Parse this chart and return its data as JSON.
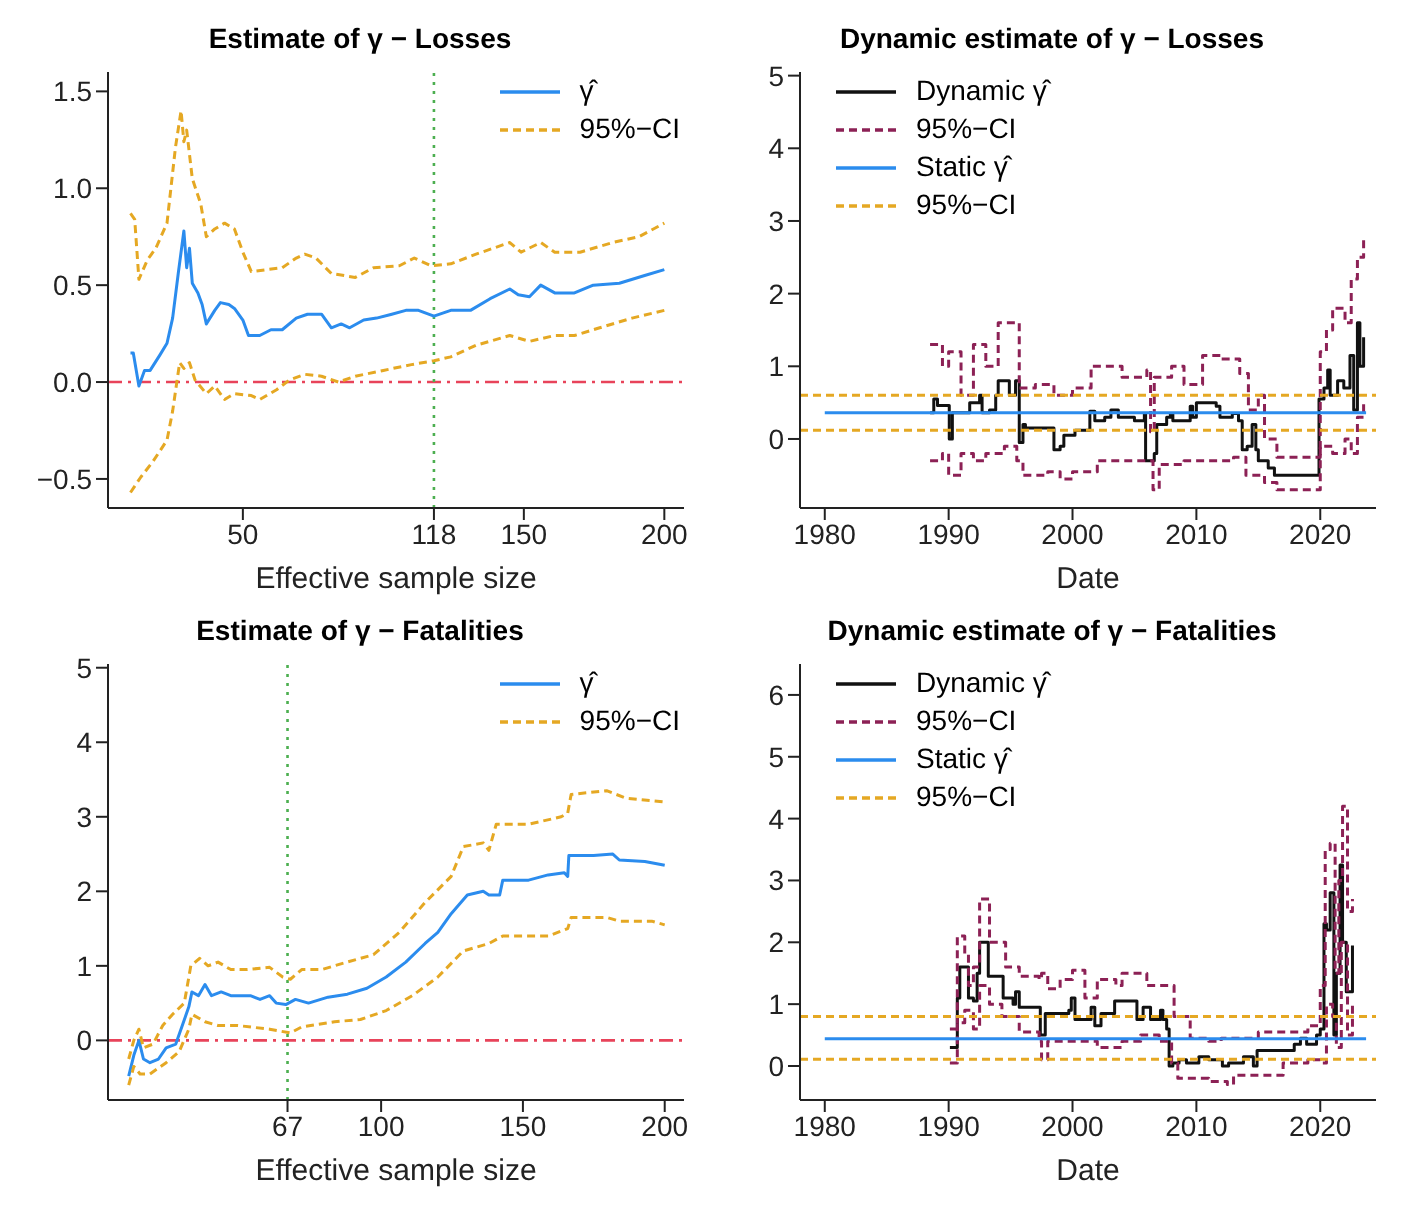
{
  "chart_data": [
    {
      "type": "line",
      "title": "Estimate of γ − Losses",
      "xlabel": "Effective sample size",
      "xlim": [
        2,
        207
      ],
      "xticks": [
        50,
        118,
        150,
        200
      ],
      "ylim": [
        -0.65,
        1.6
      ],
      "yticks": [
        {
          "value": -0.5,
          "label": "−0.5"
        },
        {
          "value": 0,
          "label": "0.0"
        },
        {
          "value": 0.5,
          "label": "0.5"
        },
        {
          "value": 1,
          "label": "1.0"
        },
        {
          "value": 1.5,
          "label": "1.5"
        }
      ],
      "legend": "top right",
      "ref_lines": [
        {
          "axis": "y",
          "value": 0,
          "color": "#e8435a",
          "line_style": "dashdot"
        },
        {
          "axis": "x",
          "value": 118,
          "color": "#4caf50",
          "line_style": "dotted"
        }
      ],
      "series": [
        {
          "name": "γ̂",
          "color": "#2b8cee",
          "line_style": "solid",
          "x": [
            10,
            11,
            13,
            15,
            17,
            20.5,
            23,
            25,
            27,
            29,
            30,
            31,
            32,
            34,
            35.5,
            37,
            40,
            42,
            45,
            47,
            50,
            52,
            56,
            60,
            64,
            69,
            73,
            78,
            81.5,
            85,
            88,
            93,
            97.6,
            103,
            108,
            112.5,
            118,
            124,
            131,
            138,
            145,
            148,
            152,
            156,
            161,
            168,
            174.7,
            184,
            193,
            200
          ],
          "values": [
            0.15,
            0.15,
            -0.02,
            0.06,
            0.06,
            0.14,
            0.2,
            0.33,
            0.56,
            0.78,
            0.59,
            0.69,
            0.51,
            0.46,
            0.4,
            0.3,
            0.37,
            0.41,
            0.4,
            0.38,
            0.32,
            0.24,
            0.24,
            0.27,
            0.27,
            0.33,
            0.35,
            0.35,
            0.28,
            0.3,
            0.28,
            0.32,
            0.33,
            0.35,
            0.37,
            0.37,
            0.34,
            0.37,
            0.37,
            0.43,
            0.48,
            0.45,
            0.44,
            0.5,
            0.46,
            0.46,
            0.5,
            0.51,
            0.55,
            0.58
          ]
        },
        {
          "name": "95%−CI",
          "color": "#e5a823",
          "line_style": "dashed",
          "x": [
            10,
            11.5,
            13,
            16,
            19,
            23,
            26,
            28,
            29,
            30,
            32,
            35,
            37,
            40,
            43.5,
            47,
            50,
            53,
            58.5,
            64,
            69,
            72,
            76,
            81.5,
            90,
            96.5,
            105.7,
            111,
            117,
            124,
            133,
            145,
            149,
            156,
            161,
            170,
            181.6,
            191,
            200
          ],
          "values": [
            0.87,
            0.84,
            0.53,
            0.63,
            0.69,
            0.82,
            1.21,
            1.4,
            1.24,
            1.3,
            1.05,
            0.92,
            0.75,
            0.79,
            0.82,
            0.79,
            0.67,
            0.57,
            0.58,
            0.59,
            0.64,
            0.66,
            0.64,
            0.56,
            0.54,
            0.59,
            0.6,
            0.64,
            0.6,
            0.61,
            0.66,
            0.72,
            0.67,
            0.72,
            0.67,
            0.67,
            0.72,
            0.75,
            0.82
          ]
        },
        {
          "color": "#e5a823",
          "line_style": "dashed",
          "x": [
            10,
            13.7,
            18,
            23,
            25,
            27.5,
            29,
            31,
            33,
            37,
            40,
            43.5,
            47,
            53,
            56,
            62,
            66.5,
            72,
            78,
            84,
            90,
            100,
            110,
            118,
            124,
            133,
            145,
            152,
            161,
            168,
            177,
            188.5,
            200
          ],
          "values": [
            -0.57,
            -0.49,
            -0.41,
            -0.3,
            -0.15,
            0.1,
            0.07,
            0.1,
            0.01,
            -0.06,
            -0.02,
            -0.09,
            -0.06,
            -0.07,
            -0.09,
            -0.04,
            0.01,
            0.04,
            0.03,
            0,
            0.03,
            0.06,
            0.09,
            0.11,
            0.13,
            0.19,
            0.24,
            0.21,
            0.24,
            0.24,
            0.28,
            0.33,
            0.37
          ]
        }
      ]
    },
    {
      "type": "step",
      "title": "Dynamic estimate of γ − Losses",
      "xlabel": "Date",
      "xlim": [
        1978,
        2024.5
      ],
      "xticks": [
        1980,
        1990,
        2000,
        2010,
        2020
      ],
      "ylim": [
        -0.95,
        5.05
      ],
      "yticks": [
        0,
        1,
        2,
        3,
        4,
        5
      ],
      "legend": "top left",
      "series": [
        {
          "name": "Dynamic γ̂",
          "color": "#111111",
          "line_style": "solid",
          "x": [
            1988.5,
            1988.8,
            1989.1,
            1989.9,
            1990.05,
            1990.3,
            1991.2,
            1991.7,
            1992.5,
            1992.7,
            1993.3,
            1993.8,
            1994,
            1994.9,
            1995.2,
            1995.4,
            1995.7,
            1996,
            1996.2,
            1998.4,
            1998.5,
            1999,
            1999.3,
            2000.2,
            2001.3,
            2001.4,
            2001.8,
            2002.6,
            2003.1,
            2003.7,
            2004.4,
            2005,
            2005.8,
            2005.9,
            2006.6,
            2006.8,
            2007.6,
            2007.9,
            2008.1,
            2009.2,
            2009.5,
            2009.7,
            2010,
            2010.8,
            2011.6,
            2011.9,
            2012.9,
            2013.4,
            2013.7,
            2014.1,
            2014.5,
            2014.8,
            2015,
            2015.8,
            2016.3,
            2019.3,
            2019.7,
            2019.9,
            2020.3,
            2020.6,
            2020.8,
            2021.4,
            2021.9,
            2022.4,
            2022.7,
            2023,
            2023.2,
            2023.5
          ],
          "values": [
            0.36,
            0.55,
            0.46,
            0.46,
            0,
            0.36,
            0.36,
            0.5,
            0.6,
            0.36,
            0.4,
            0.6,
            0.8,
            0.6,
            0.6,
            0.8,
            -0.05,
            0.2,
            0.15,
            0.15,
            -0.15,
            -0.1,
            0.05,
            0.12,
            0.12,
            0.38,
            0.25,
            0.3,
            0.4,
            0.3,
            0.3,
            0.25,
            0.35,
            -0.3,
            -0.2,
            0.2,
            0.3,
            0.35,
            0.25,
            0.25,
            0.45,
            0.3,
            0.5,
            0.5,
            0.45,
            0.3,
            0.35,
            0.25,
            -0.15,
            -0.1,
            0.2,
            -0.15,
            -0.3,
            -0.4,
            -0.5,
            -0.5,
            -0.5,
            0.55,
            0.7,
            0.95,
            0.6,
            0.8,
            0.7,
            1.15,
            0.4,
            1.6,
            1,
            1.4
          ]
        },
        {
          "name": "95%−CI",
          "color": "#8c2155",
          "line_style": "dashed",
          "x": [
            1988.5,
            1989.5,
            1990,
            1991,
            1992,
            1993,
            1994,
            1995.4,
            1995.7,
            1997,
            1998.5,
            2000,
            2001.5,
            2003,
            2004,
            2006,
            2006.3,
            2006.6,
            2008,
            2009,
            2010.5,
            2012,
            2013.5,
            2014.2,
            2015,
            2015.5,
            2016.5,
            2019.5,
            2020,
            2020.5,
            2021,
            2022,
            2022.5,
            2023,
            2023.5
          ],
          "values": [
            1.3,
            1,
            1.2,
            0.6,
            1.3,
            1,
            1.6,
            1.6,
            0.7,
            0.75,
            0.6,
            0.7,
            1,
            1,
            0.85,
            0.95,
            0.1,
            0.85,
            1,
            0.75,
            1.15,
            1.1,
            0.9,
            0.4,
            0.6,
            0,
            -0.25,
            -0.25,
            1.2,
            1.5,
            1.8,
            1.6,
            2.2,
            2.5,
            2.8
          ]
        },
        {
          "color": "#8c2155",
          "line_style": "dashed",
          "x": [
            1988.5,
            1989.5,
            1990,
            1991,
            1992,
            1993,
            1994.5,
            1995.5,
            1996,
            1998,
            1999,
            2000,
            2002,
            2004,
            2005.5,
            2006.5,
            2007,
            2009,
            2011,
            2013,
            2014,
            2015.5,
            2016.5,
            2019.5,
            2020,
            2021,
            2022,
            2022.5,
            2023,
            2023.5
          ],
          "values": [
            -0.3,
            -0.2,
            -0.5,
            -0.2,
            -0.3,
            -0.2,
            -0.1,
            -0.3,
            -0.5,
            -0.45,
            -0.55,
            -0.45,
            -0.3,
            -0.3,
            -0.3,
            -0.7,
            -0.35,
            -0.3,
            -0.3,
            -0.25,
            -0.5,
            -0.6,
            -0.7,
            -0.7,
            -0.1,
            -0.2,
            0,
            -0.2,
            0.3,
            0.5
          ]
        },
        {
          "name": "Static γ̂",
          "type": "line",
          "color": "#2b8cee",
          "line_style": "solid",
          "x": [
            1980,
            2023.7
          ],
          "values": [
            0.36,
            0.36
          ]
        },
        {
          "name": "95%−CI",
          "type": "line",
          "color": "#e5a823",
          "line_style": "dashed",
          "x": [
            1978,
            2024.5
          ],
          "values": [
            0.6,
            0.6
          ]
        },
        {
          "type": "line",
          "color": "#e5a823",
          "line_style": "dashed",
          "x": [
            1978,
            2024.5
          ],
          "values": [
            0.12,
            0.12
          ]
        }
      ]
    },
    {
      "type": "line",
      "title": "Estimate of γ − Fatalities",
      "xlabel": "Effective sample size",
      "xlim": [
        3.7,
        206.8
      ],
      "xticks": [
        67,
        100,
        150,
        200
      ],
      "ylim": [
        -0.8,
        5.05
      ],
      "yticks": [
        0,
        1,
        2,
        3,
        4,
        5
      ],
      "legend": "top right",
      "ref_lines": [
        {
          "axis": "y",
          "value": 0,
          "color": "#e8435a",
          "line_style": "dashdot"
        },
        {
          "axis": "x",
          "value": 67,
          "color": "#4caf50",
          "line_style": "dotted"
        }
      ],
      "series": [
        {
          "name": "γ̂",
          "color": "#2b8cee",
          "line_style": "solid",
          "x": [
            11,
            12.8,
            14.6,
            16.2,
            18.5,
            21.5,
            24.2,
            27.6,
            29.9,
            32.2,
            33.3,
            35.6,
            37.9,
            40.2,
            43.6,
            47,
            53.9,
            57.3,
            60.7,
            63,
            66.4,
            69.8,
            74.4,
            81.3,
            88.1,
            95,
            101.8,
            108.7,
            115.5,
            120,
            124.7,
            130.4,
            136,
            138,
            141.8,
            142.9,
            152,
            158.9,
            164.6,
            165.8,
            166.2,
            174.9,
            181.7,
            184,
            193,
            200
          ],
          "values": [
            -0.48,
            -0.2,
            0,
            -0.25,
            -0.3,
            -0.25,
            -0.1,
            -0.05,
            0.2,
            0.45,
            0.65,
            0.6,
            0.75,
            0.6,
            0.65,
            0.6,
            0.6,
            0.55,
            0.6,
            0.5,
            0.48,
            0.55,
            0.5,
            0.58,
            0.62,
            0.7,
            0.85,
            1.05,
            1.3,
            1.45,
            1.7,
            1.95,
            2,
            1.95,
            1.95,
            2.15,
            2.15,
            2.22,
            2.25,
            2.2,
            2.48,
            2.48,
            2.5,
            2.42,
            2.4,
            2.35
          ]
        },
        {
          "name": "95%−CI",
          "color": "#e5a823",
          "line_style": "dashed",
          "x": [
            11,
            12.8,
            14.6,
            16.2,
            19.6,
            23,
            26.5,
            30.6,
            32.9,
            36,
            39,
            42.5,
            47,
            52.7,
            60.7,
            65.3,
            68,
            72,
            79,
            88,
            97.3,
            106.4,
            115.5,
            124.7,
            129,
            136,
            138,
            140.6,
            152,
            163.5,
            165.8,
            167,
            179.5,
            186.3,
            200
          ],
          "values": [
            -0.25,
            0,
            0.15,
            -0.1,
            -0.05,
            0.2,
            0.35,
            0.5,
            1,
            1.1,
            1,
            1.05,
            0.95,
            0.95,
            0.98,
            0.85,
            0.82,
            0.95,
            0.95,
            1.05,
            1.15,
            1.45,
            1.85,
            2.2,
            2.6,
            2.65,
            2.55,
            2.9,
            2.9,
            3,
            3.05,
            3.3,
            3.35,
            3.25,
            3.2
          ]
        },
        {
          "color": "#e5a823",
          "line_style": "dashed",
          "x": [
            11,
            12.8,
            15,
            18.5,
            24.2,
            28.8,
            32.2,
            33.3,
            37.9,
            42.5,
            49.3,
            60.7,
            68,
            72,
            83.6,
            92.7,
            101.8,
            111,
            120,
            129,
            138,
            142.9,
            159,
            165.8,
            167,
            179.5,
            184,
            195.4,
            200
          ],
          "values": [
            -0.6,
            -0.35,
            -0.45,
            -0.45,
            -0.3,
            -0.15,
            0.15,
            0.35,
            0.25,
            0.2,
            0.2,
            0.15,
            0.1,
            0.18,
            0.25,
            0.28,
            0.4,
            0.6,
            0.85,
            1.2,
            1.3,
            1.4,
            1.4,
            1.5,
            1.65,
            1.65,
            1.6,
            1.6,
            1.55
          ]
        }
      ]
    },
    {
      "type": "step",
      "title": "Dynamic estimate of γ − Fatalities",
      "xlabel": "Date",
      "xlim": [
        1978,
        2024.5
      ],
      "xticks": [
        1980,
        1990,
        2000,
        2010,
        2020
      ],
      "ylim": [
        -0.55,
        6.5
      ],
      "yticks": [
        0,
        1,
        2,
        3,
        4,
        5,
        6
      ],
      "legend": "top left",
      "series": [
        {
          "name": "Dynamic γ̂",
          "color": "#111111",
          "line_style": "solid",
          "x": [
            1990.1,
            1990.6,
            1990.7,
            1990.9,
            1991.5,
            1991.6,
            1992,
            1992.3,
            1992.5,
            1993.1,
            1993.2,
            1994.1,
            1994.4,
            1995.2,
            1995.4,
            1995.7,
            1997.3,
            1997.4,
            1997.8,
            1999.1,
            1999.7,
            1999.9,
            2000.2,
            2001.2,
            2001.5,
            2001.8,
            2002.3,
            2003.1,
            2003.4,
            2004.9,
            2005.2,
            2005.7,
            2006.3,
            2007.1,
            2007.3,
            2007.6,
            2007.8,
            2008.1,
            2008.6,
            2009.2,
            2010.2,
            2011,
            2011.8,
            2012.1,
            2012.6,
            2013.7,
            2013.8,
            2014.6,
            2014.9,
            2017.1,
            2017.9,
            2018.4,
            2018.9,
            2019.7,
            2020,
            2020.3,
            2020.5,
            2020.8,
            2021.1,
            2021.3,
            2021.6,
            2021.8,
            2022.1,
            2022.5,
            2022.6
          ],
          "values": [
            0.3,
            0.3,
            1.1,
            1.6,
            1.6,
            1.1,
            1.05,
            1.5,
            2,
            2,
            1.45,
            1.45,
            1.1,
            1,
            1.2,
            0.95,
            0.95,
            0.5,
            0.85,
            0.85,
            0.9,
            1.1,
            0.75,
            0.75,
            0.95,
            0.65,
            0.85,
            0.85,
            1.05,
            1.05,
            0.75,
            0.95,
            0.75,
            0.9,
            0.75,
            0.6,
            0,
            0.05,
            0.1,
            0.05,
            0.15,
            0.1,
            0.1,
            0,
            0.05,
            0.05,
            0.15,
            0,
            0.25,
            0.25,
            0.35,
            0.45,
            0.35,
            0.5,
            0.6,
            2.3,
            2.2,
            2.8,
            0.5,
            1.5,
            3.25,
            2,
            1.2,
            1.2,
            1.95
          ]
        },
        {
          "name": "95%−CI",
          "color": "#8c2155",
          "line_style": "dashed",
          "x": [
            1990.1,
            1990.7,
            1991.3,
            1991.6,
            1992,
            1992.5,
            1993.3,
            1994.3,
            1994.6,
            1995.7,
            1997.3,
            1997.5,
            1998,
            1999,
            2000,
            2001,
            2002,
            2003.5,
            2004,
            2005.5,
            2006,
            2007.5,
            2008.2,
            2009.5,
            2011,
            2012,
            2013.5,
            2015,
            2017,
            2019,
            2020,
            2020.4,
            2020.8,
            2021.2,
            2021.5,
            2021.8,
            2022.2,
            2022.6
          ],
          "values": [
            0.6,
            2.1,
            1.8,
            1.3,
            1.6,
            2.7,
            2,
            2,
            1.6,
            1.45,
            1.4,
            1.5,
            1.25,
            1.4,
            1.55,
            1.1,
            1.4,
            1.3,
            1.5,
            1.5,
            1.3,
            1.3,
            0.8,
            0.45,
            0.4,
            0.45,
            0.45,
            0.55,
            0.55,
            0.65,
            1.3,
            3.5,
            3.6,
            1.5,
            3,
            4.2,
            2.5,
            2.7
          ]
        },
        {
          "color": "#8c2155",
          "line_style": "dashed",
          "x": [
            1990.1,
            1990.7,
            1991.3,
            1992,
            1992.5,
            1993.3,
            1994.3,
            1995.7,
            1997.3,
            1997.5,
            1998,
            2000,
            2001,
            2002,
            2004,
            2005.5,
            2007,
            2008,
            2008.5,
            2010,
            2011,
            2012.5,
            2013,
            2015,
            2017,
            2019,
            2020,
            2020.5,
            2021,
            2021.3,
            2021.7,
            2022.2,
            2022.6
          ],
          "values": [
            0.05,
            0.7,
            0.9,
            0.6,
            1.3,
            1,
            0.8,
            0.55,
            0.4,
            0.1,
            0.4,
            0.4,
            0.4,
            0.3,
            0.4,
            0.5,
            0.4,
            0.05,
            -0.2,
            -0.2,
            -0.25,
            -0.3,
            -0.15,
            -0.15,
            0.05,
            0.1,
            0.05,
            1,
            0.8,
            0.3,
            2,
            0.5,
            1
          ]
        },
        {
          "name": "Static γ̂",
          "type": "line",
          "color": "#2b8cee",
          "line_style": "solid",
          "x": [
            1980,
            2023.7
          ],
          "values": [
            0.44,
            0.44
          ]
        },
        {
          "name": "95%−CI",
          "type": "line",
          "color": "#e5a823",
          "line_style": "dashed",
          "x": [
            1978,
            2024.5
          ],
          "values": [
            0.8,
            0.8
          ]
        },
        {
          "type": "line",
          "color": "#e5a823",
          "line_style": "dashed",
          "x": [
            1978,
            2024.5
          ],
          "values": [
            0.11,
            0.11
          ]
        }
      ]
    }
  ]
}
